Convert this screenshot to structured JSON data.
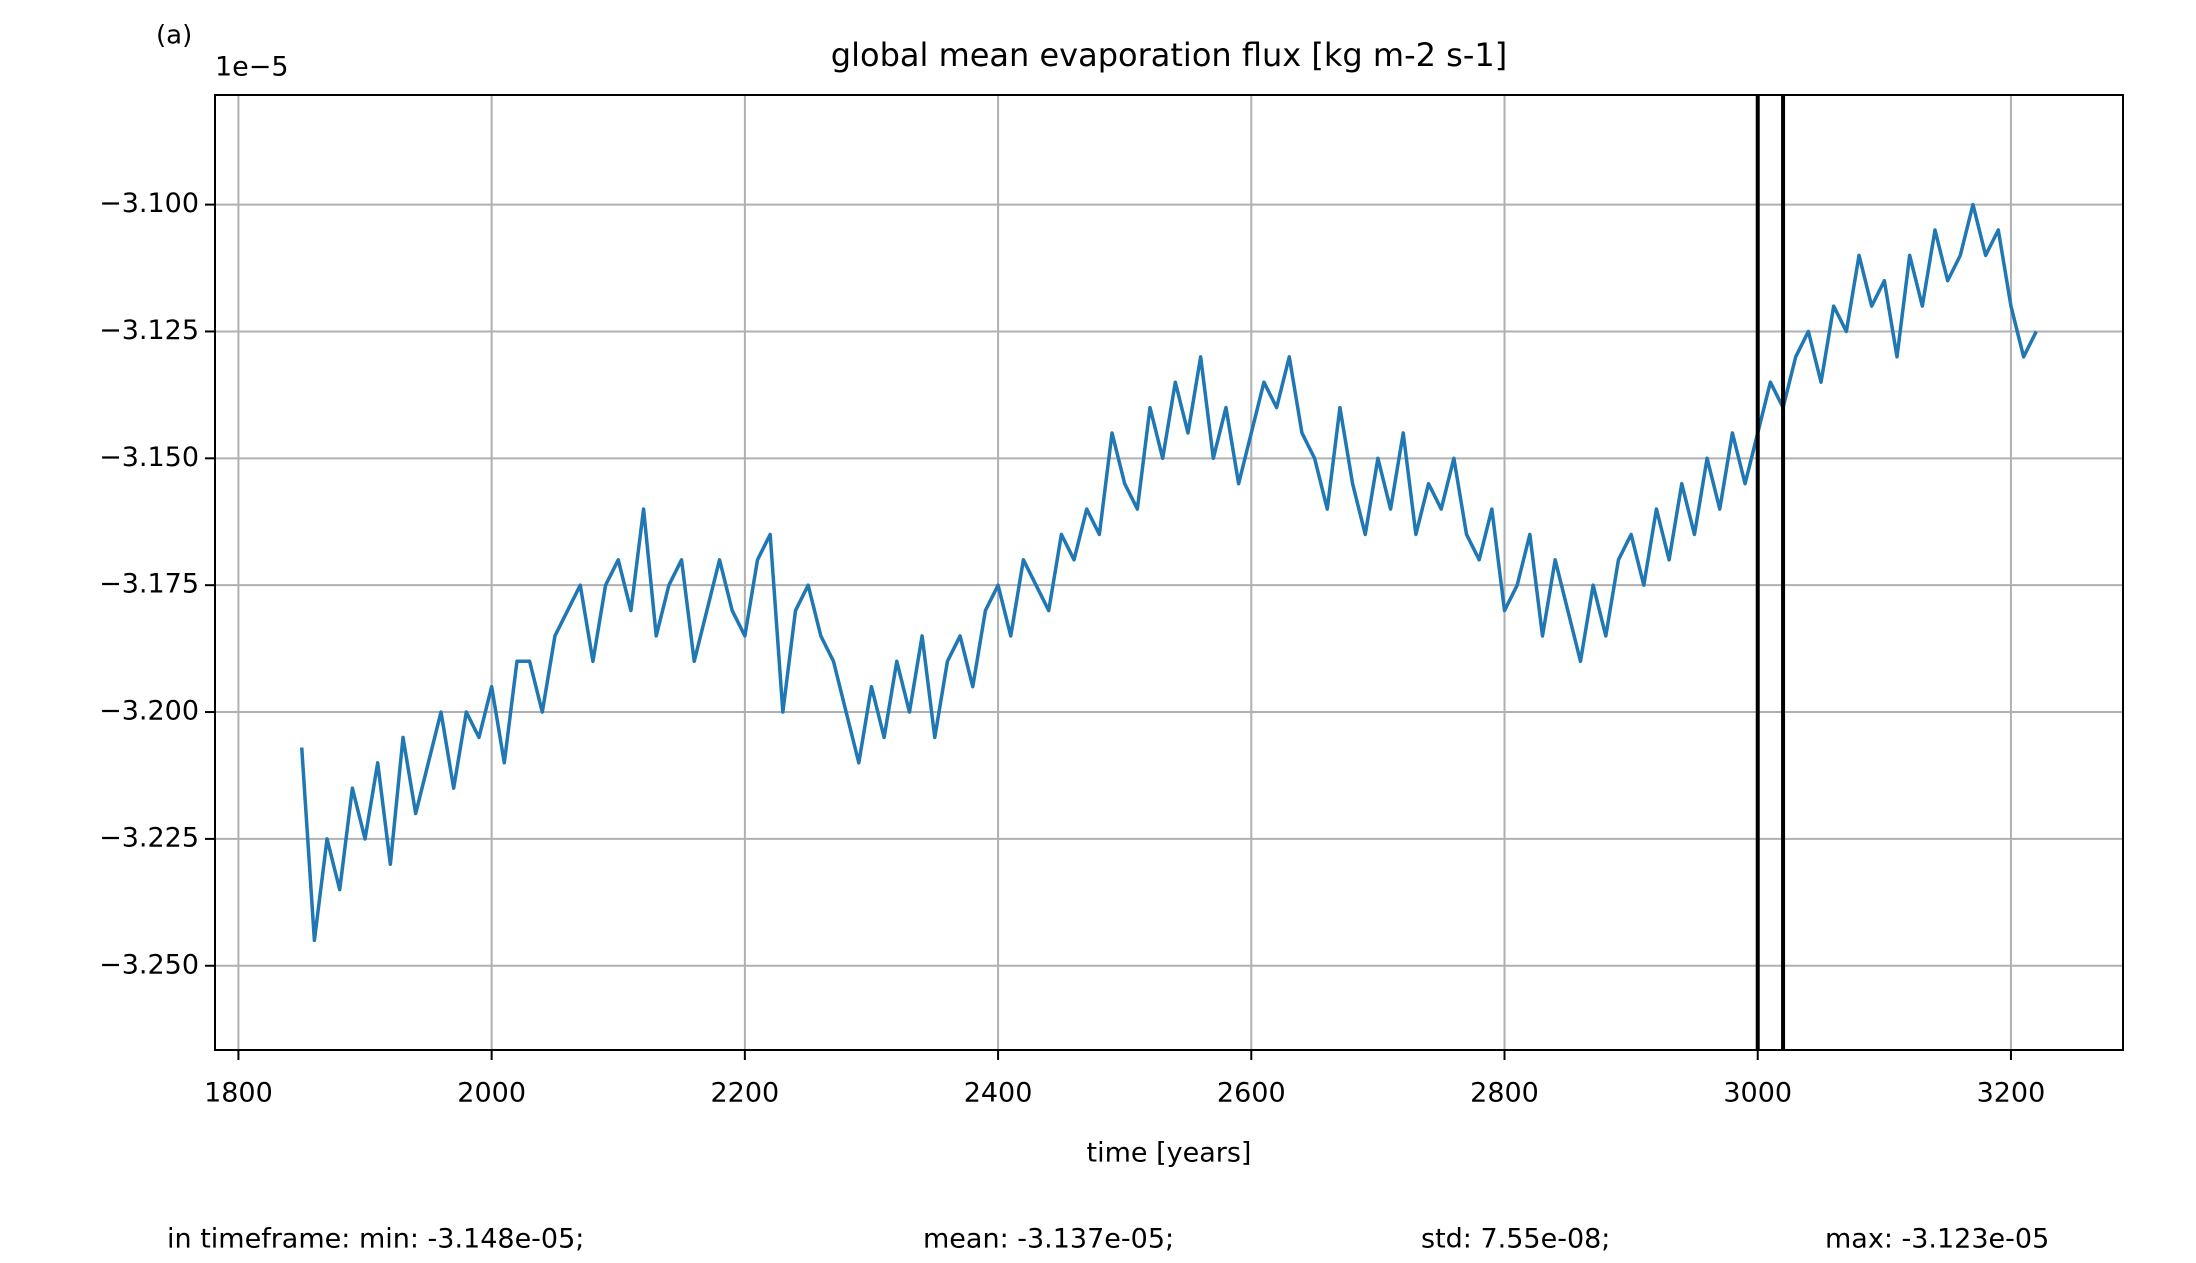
{
  "chart_data": {
    "type": "line",
    "panel_label": "(a)",
    "title": "global mean evaporation flux [kg m-2 s-1]",
    "offset_label": "1e−5",
    "xlabel": "time [years]",
    "stats": [
      "in timeframe: min: -3.148e-05;",
      "mean: -3.137e-05;",
      "std: 7.55e-08;",
      "max: -3.123e-05"
    ],
    "xlim": [
      1781.5,
      3288.5
    ],
    "xticks": [
      1800,
      2000,
      2200,
      2400,
      2600,
      2800,
      3000,
      3200
    ],
    "ylim": [
      -3.2666,
      -3.0784
    ],
    "yticks": [
      {
        "value": -3.25,
        "label": "−3.250"
      },
      {
        "value": -3.225,
        "label": "−3.225"
      },
      {
        "value": -3.2,
        "label": "−3.200"
      },
      {
        "value": -3.175,
        "label": "−3.175"
      },
      {
        "value": -3.15,
        "label": "−3.150"
      },
      {
        "value": -3.125,
        "label": "−3.125"
      },
      {
        "value": -3.1,
        "label": "−3.100"
      }
    ],
    "grid": true,
    "vlines": [
      3000,
      3020
    ],
    "vline_color": "#000000",
    "x": [
      1850,
      1860,
      1870,
      1880,
      1890,
      1900,
      1910,
      1920,
      1930,
      1940,
      1950,
      1960,
      1970,
      1980,
      1990,
      2000,
      2010,
      2020,
      2030,
      2040,
      2050,
      2060,
      2070,
      2080,
      2090,
      2100,
      2110,
      2120,
      2130,
      2140,
      2150,
      2160,
      2170,
      2180,
      2190,
      2200,
      2210,
      2220,
      2230,
      2240,
      2250,
      2260,
      2270,
      2280,
      2290,
      2300,
      2310,
      2320,
      2330,
      2340,
      2350,
      2360,
      2370,
      2380,
      2390,
      2400,
      2410,
      2420,
      2430,
      2440,
      2450,
      2460,
      2470,
      2480,
      2490,
      2500,
      2510,
      2520,
      2530,
      2540,
      2550,
      2560,
      2570,
      2580,
      2590,
      2600,
      2610,
      2620,
      2630,
      2640,
      2650,
      2660,
      2670,
      2680,
      2690,
      2700,
      2710,
      2720,
      2730,
      2740,
      2750,
      2760,
      2770,
      2780,
      2790,
      2800,
      2810,
      2820,
      2830,
      2840,
      2850,
      2860,
      2870,
      2880,
      2890,
      2900,
      2910,
      2920,
      2930,
      2940,
      2950,
      2960,
      2970,
      2980,
      2990,
      3000,
      3010,
      3020,
      3030,
      3040,
      3050,
      3060,
      3070,
      3080,
      3090,
      3100,
      3110,
      3120,
      3130,
      3140,
      3150,
      3160,
      3170,
      3180,
      3190,
      3200,
      3210,
      3220
    ],
    "series": [
      {
        "color": "#1f77b4",
        "values": [
          -3.207,
          -3.245,
          -3.225,
          -3.235,
          -3.215,
          -3.225,
          -3.21,
          -3.23,
          -3.205,
          -3.22,
          -3.21,
          -3.2,
          -3.215,
          -3.2,
          -3.205,
          -3.195,
          -3.21,
          -3.19,
          -3.19,
          -3.2,
          -3.185,
          -3.18,
          -3.175,
          -3.19,
          -3.175,
          -3.17,
          -3.18,
          -3.16,
          -3.185,
          -3.175,
          -3.17,
          -3.19,
          -3.18,
          -3.17,
          -3.18,
          -3.185,
          -3.17,
          -3.165,
          -3.2,
          -3.18,
          -3.175,
          -3.185,
          -3.19,
          -3.2,
          -3.21,
          -3.195,
          -3.205,
          -3.19,
          -3.2,
          -3.185,
          -3.205,
          -3.19,
          -3.185,
          -3.195,
          -3.18,
          -3.175,
          -3.185,
          -3.17,
          -3.175,
          -3.18,
          -3.165,
          -3.17,
          -3.16,
          -3.165,
          -3.145,
          -3.155,
          -3.16,
          -3.14,
          -3.15,
          -3.135,
          -3.145,
          -3.13,
          -3.15,
          -3.14,
          -3.155,
          -3.145,
          -3.135,
          -3.14,
          -3.13,
          -3.145,
          -3.15,
          -3.16,
          -3.14,
          -3.155,
          -3.165,
          -3.15,
          -3.16,
          -3.145,
          -3.165,
          -3.155,
          -3.16,
          -3.15,
          -3.165,
          -3.17,
          -3.16,
          -3.18,
          -3.175,
          -3.165,
          -3.185,
          -3.17,
          -3.18,
          -3.19,
          -3.175,
          -3.185,
          -3.17,
          -3.165,
          -3.175,
          -3.16,
          -3.17,
          -3.155,
          -3.165,
          -3.15,
          -3.16,
          -3.145,
          -3.155,
          -3.145,
          -3.135,
          -3.14,
          -3.13,
          -3.125,
          -3.135,
          -3.12,
          -3.125,
          -3.11,
          -3.12,
          -3.115,
          -3.13,
          -3.11,
          -3.12,
          -3.105,
          -3.115,
          -3.11,
          -3.1,
          -3.11,
          -3.105,
          -3.12,
          -3.13,
          -3.125
        ]
      }
    ]
  }
}
